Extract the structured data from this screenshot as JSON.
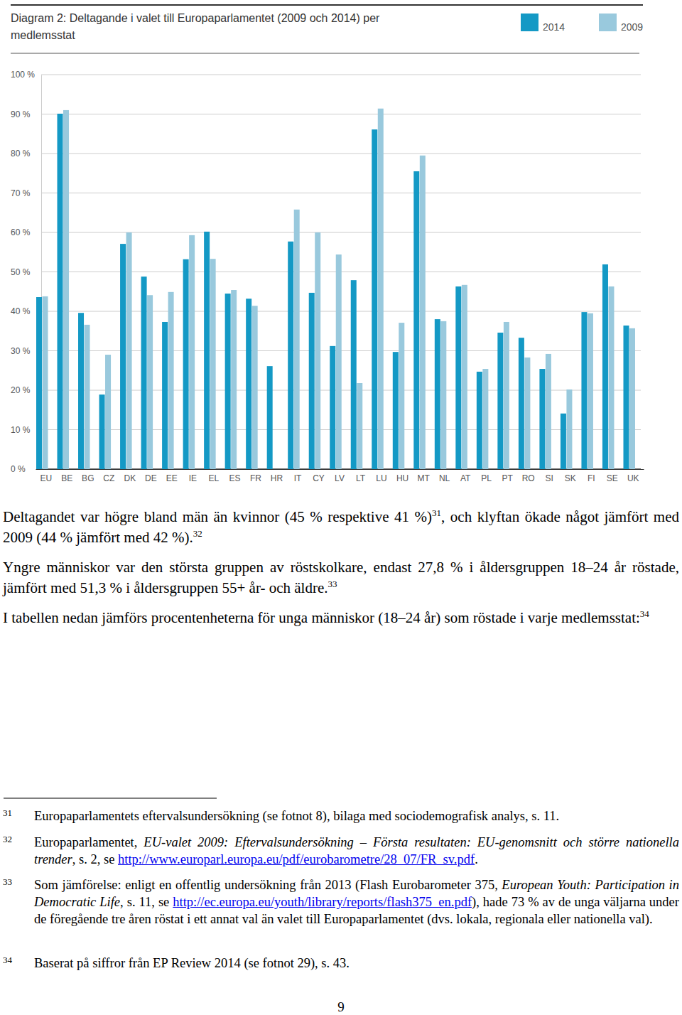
{
  "chart_data": {
    "type": "bar",
    "title": "Diagram 2: Deltagande i valet till Europaparlamentet (2009 och 2014) per medlemsstat",
    "categories": [
      "EU",
      "BE",
      "BG",
      "CZ",
      "DK",
      "DE",
      "EE",
      "IE",
      "EL",
      "ES",
      "FR",
      "HR",
      "IT",
      "CY",
      "LV",
      "LT",
      "LU",
      "HU",
      "MT",
      "NL",
      "AT",
      "PL",
      "PT",
      "RO",
      "SI",
      "SK",
      "FI",
      "SE",
      "UK"
    ],
    "series": [
      {
        "name": "2014",
        "color": "#1499c5",
        "values": [
          43.6,
          90.1,
          39.6,
          18.9,
          57.1,
          48.8,
          37.3,
          53.2,
          60.2,
          44.5,
          43.2,
          26.1,
          57.7,
          44.7,
          31.2,
          47.9,
          86.1,
          29.7,
          75.5,
          38.0,
          46.3,
          24.7,
          34.6,
          33.3,
          25.4,
          14.1,
          39.8,
          51.9,
          36.4
        ]
      },
      {
        "name": "2009",
        "color": "#99c9dd",
        "values": [
          43.8,
          91.0,
          36.6,
          29.0,
          60.0,
          44.1,
          44.9,
          59.3,
          53.3,
          45.4,
          41.4,
          null,
          65.8,
          60.0,
          54.4,
          21.8,
          91.4,
          37.1,
          79.5,
          37.5,
          46.7,
          25.4,
          37.3,
          28.3,
          29.2,
          20.2,
          39.5,
          46.3,
          35.7
        ]
      }
    ],
    "ylim": [
      0,
      100
    ],
    "yticks": [
      {
        "value": 0,
        "label": "0 %"
      },
      {
        "value": 10,
        "label": "10 %"
      },
      {
        "value": 20,
        "label": "20 %"
      },
      {
        "value": 30,
        "label": "30 %"
      },
      {
        "value": 40,
        "label": "40 %"
      },
      {
        "value": 50,
        "label": "50 %"
      },
      {
        "value": 60,
        "label": "60 %"
      },
      {
        "value": 70,
        "label": "70 %"
      },
      {
        "value": 80,
        "label": "80 %"
      },
      {
        "value": 90,
        "label": "90 %"
      },
      {
        "value": 100,
        "label": "100 %"
      }
    ],
    "grid": true,
    "legend": "top-right"
  },
  "document": {
    "paragraphs": [
      [
        {
          "text": "Deltagandet var högre bland män än kvinnor (45 % respektive 41 %)",
          "sup": "31"
        },
        {
          "text": ", och klyftan ökade något jämfört med 2009 (44 % jämfört med 42 %).",
          "sup": "32"
        }
      ],
      [
        {
          "text": "Yngre människor var den största gruppen av röstskolkare, endast 27,8 % i åldersgruppen 18–24 år röstade, jämfört med 51,3 % i åldersgruppen 55+ år- och äldre.",
          "sup": "33"
        }
      ],
      [
        {
          "text": "I tabellen nedan jämförs procentenheterna för unga människor (18–24 år) som röstade i varje medlemsstat:",
          "sup": "34"
        }
      ]
    ],
    "footnotes": [
      {
        "number": "31",
        "parts": [
          {
            "text": "Europaparlamentets eftervalsundersökning (se fotnot 8), bilaga med sociodemografisk analys, s. 11."
          }
        ]
      },
      {
        "number": "32",
        "parts": [
          {
            "text": "Europaparlamentet, "
          },
          {
            "text": "EU-valet 2009: Eftervalsundersökning – Första resultaten: EU-genomsnitt och större nationella trender",
            "style": "italic"
          },
          {
            "text": ", s. 2, se "
          },
          {
            "text": "http://www.europarl.europa.eu/pdf/eurobarometre/28_07/FR_sv.pdf",
            "style": "link"
          },
          {
            "text": "."
          }
        ]
      },
      {
        "number": "33",
        "parts": [
          {
            "text": "Som jämförelse: enligt en offentlig undersökning från 2013 (Flash Eurobarometer 375, "
          },
          {
            "text": "European Youth: Participation in Democratic Life",
            "style": "italic"
          },
          {
            "text": ", s. 11, se "
          },
          {
            "text": "http://ec.europa.eu/youth/library/reports/flash375_en.pdf",
            "style": "link"
          },
          {
            "text": "), hade 73 % av de unga väljarna under de föregående tre åren röstat i ett annat val än valet till Europaparlamentet (dvs. lokala, regionala eller nationella val)."
          }
        ]
      },
      {
        "number": "34",
        "parts": [
          {
            "text": "Baserat på siffror från EP Review 2014 (se fotnot 29), s. 43."
          }
        ]
      }
    ],
    "page_number": "9"
  }
}
